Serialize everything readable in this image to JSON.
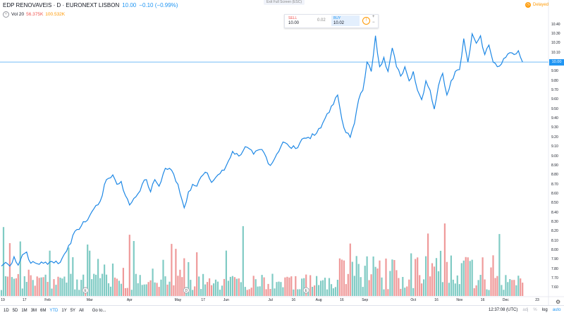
{
  "header": {
    "symbol": "EDP RENOVAVEIS · D · EURONEXT LISBON",
    "last": "10.00",
    "change": "−0.10 (−0.99%)",
    "vol_label": "Vol 20",
    "vol_value_1": "56.375K",
    "vol_value_2": "100.532K",
    "exit_fullscreen": "Exit Full Screen (ESC)",
    "delayed": "Delayed"
  },
  "trade": {
    "sell_label": "SELL",
    "sell_price": "10.00",
    "spread": "0.02",
    "buy_label": "BUY",
    "buy_price": "10.02",
    "info": "!",
    "plus": "+",
    "minus": "−"
  },
  "colors": {
    "line": "#1e88e5",
    "vol_up": "#80cbc4",
    "vol_down": "#ef9a9a",
    "accent": "#2196f3"
  },
  "chart_data": {
    "type": "line",
    "title": "EDP RENOVAVEIS · D · EURONEXT LISBON",
    "price_ticks": [
      "10.40",
      "10.30",
      "10.20",
      "10.10",
      "10.00",
      "9.90",
      "9.80",
      "9.70",
      "9.60",
      "9.50",
      "9.40",
      "9.30",
      "9.20",
      "9.10",
      "9.00",
      "8.90",
      "8.80",
      "8.70",
      "8.60",
      "8.50",
      "8.40",
      "8.30",
      "8.20",
      "8.10",
      "8.00",
      "7.90",
      "7.80",
      "7.70",
      "7.60"
    ],
    "last_price_label": "10.00",
    "x_ticks": [
      {
        "label": "19",
        "i": 0
      },
      {
        "label": "17",
        "i": 11
      },
      {
        "label": "Feb",
        "i": 22
      },
      {
        "label": "Mar",
        "i": 42
      },
      {
        "label": "Apr",
        "i": 61
      },
      {
        "label": "May",
        "i": 84
      },
      {
        "label": "17",
        "i": 96
      },
      {
        "label": "Jun",
        "i": 107
      },
      {
        "label": "Jul",
        "i": 128
      },
      {
        "label": "16",
        "i": 139
      },
      {
        "label": "Aug",
        "i": 151
      },
      {
        "label": "16",
        "i": 162
      },
      {
        "label": "Sep",
        "i": 173
      },
      {
        "label": "Oct",
        "i": 196
      },
      {
        "label": "16",
        "i": 207
      },
      {
        "label": "Nov",
        "i": 218
      },
      {
        "label": "16",
        "i": 229
      },
      {
        "label": "Dec",
        "i": 240
      },
      {
        "label": "23",
        "i": 255
      }
    ],
    "ylim": [
      7.55,
      10.45
    ],
    "n_days": 260,
    "anchors": [
      [
        0,
        7.83
      ],
      [
        2,
        7.87
      ],
      [
        4,
        7.83
      ],
      [
        6,
        7.93
      ],
      [
        8,
        7.84
      ],
      [
        10,
        7.95
      ],
      [
        12,
        7.98
      ],
      [
        14,
        7.86
      ],
      [
        20,
        7.86
      ],
      [
        24,
        7.88
      ],
      [
        28,
        7.87
      ],
      [
        32,
        8.05
      ],
      [
        36,
        8.22
      ],
      [
        40,
        8.3
      ],
      [
        44,
        8.44
      ],
      [
        47,
        8.52
      ],
      [
        50,
        8.75
      ],
      [
        53,
        8.8
      ],
      [
        55,
        8.7
      ],
      [
        57,
        8.73
      ],
      [
        59,
        8.58
      ],
      [
        61,
        8.48
      ],
      [
        63,
        8.55
      ],
      [
        65,
        8.6
      ],
      [
        67,
        8.7
      ],
      [
        69,
        8.75
      ],
      [
        71,
        8.62
      ],
      [
        73,
        8.75
      ],
      [
        75,
        8.68
      ],
      [
        78,
        8.87
      ],
      [
        81,
        8.85
      ],
      [
        84,
        8.7
      ],
      [
        87,
        8.45
      ],
      [
        89,
        8.62
      ],
      [
        91,
        8.7
      ],
      [
        93,
        8.68
      ],
      [
        95,
        8.78
      ],
      [
        98,
        8.82
      ],
      [
        100,
        8.72
      ],
      [
        103,
        8.8
      ],
      [
        106,
        8.85
      ],
      [
        110,
        9.05
      ],
      [
        113,
        9.0
      ],
      [
        116,
        9.1
      ],
      [
        120,
        9.02
      ],
      [
        124,
        9.07
      ],
      [
        128,
        8.9
      ],
      [
        131,
        9.02
      ],
      [
        134,
        9.15
      ],
      [
        137,
        9.1
      ],
      [
        140,
        9.08
      ],
      [
        143,
        9.18
      ],
      [
        146,
        9.2
      ],
      [
        149,
        9.22
      ],
      [
        152,
        9.3
      ],
      [
        155,
        9.45
      ],
      [
        158,
        9.55
      ],
      [
        160,
        9.65
      ],
      [
        163,
        9.3
      ],
      [
        166,
        9.2
      ],
      [
        168,
        9.35
      ],
      [
        170,
        9.6
      ],
      [
        172,
        9.7
      ],
      [
        174,
        10.0
      ],
      [
        176,
        9.9
      ],
      [
        178,
        10.28
      ],
      [
        180,
        9.95
      ],
      [
        182,
        10.05
      ],
      [
        184,
        9.9
      ],
      [
        186,
        10.15
      ],
      [
        188,
        9.95
      ],
      [
        190,
        9.85
      ],
      [
        192,
        9.95
      ],
      [
        194,
        9.8
      ],
      [
        196,
        9.9
      ],
      [
        198,
        9.7
      ],
      [
        200,
        9.6
      ],
      [
        202,
        9.8
      ],
      [
        204,
        9.7
      ],
      [
        206,
        9.5
      ],
      [
        208,
        9.75
      ],
      [
        210,
        9.88
      ],
      [
        212,
        9.65
      ],
      [
        214,
        9.8
      ],
      [
        216,
        9.9
      ],
      [
        218,
        9.92
      ],
      [
        220,
        10.25
      ],
      [
        222,
        10.0
      ],
      [
        224,
        10.3
      ],
      [
        226,
        10.2
      ],
      [
        228,
        10.28
      ],
      [
        230,
        10.08
      ],
      [
        232,
        10.18
      ],
      [
        234,
        10.0
      ],
      [
        236,
        9.95
      ],
      [
        238,
        9.98
      ],
      [
        240,
        10.05
      ],
      [
        242,
        10.1
      ],
      [
        244,
        10.08
      ],
      [
        246,
        10.12
      ],
      [
        248,
        10.0
      ]
    ],
    "volume_scale": "relative",
    "volume_max": 1.0,
    "event_markers": [
      {
        "i": 40,
        "label": "E"
      },
      {
        "i": 88,
        "label": "D"
      },
      {
        "i": 145,
        "label": "E"
      }
    ]
  },
  "toolbar": {
    "ranges": [
      "1D",
      "5D",
      "1M",
      "3M",
      "6M",
      "YTD",
      "1Y",
      "5Y",
      "All"
    ],
    "active": "YTD",
    "goto": "Go to...",
    "time": "12:37:08 (UTC)",
    "pct": "%",
    "log": "log",
    "auto": "auto",
    "adj": "adj",
    "settings_icon": "gear-icon"
  }
}
